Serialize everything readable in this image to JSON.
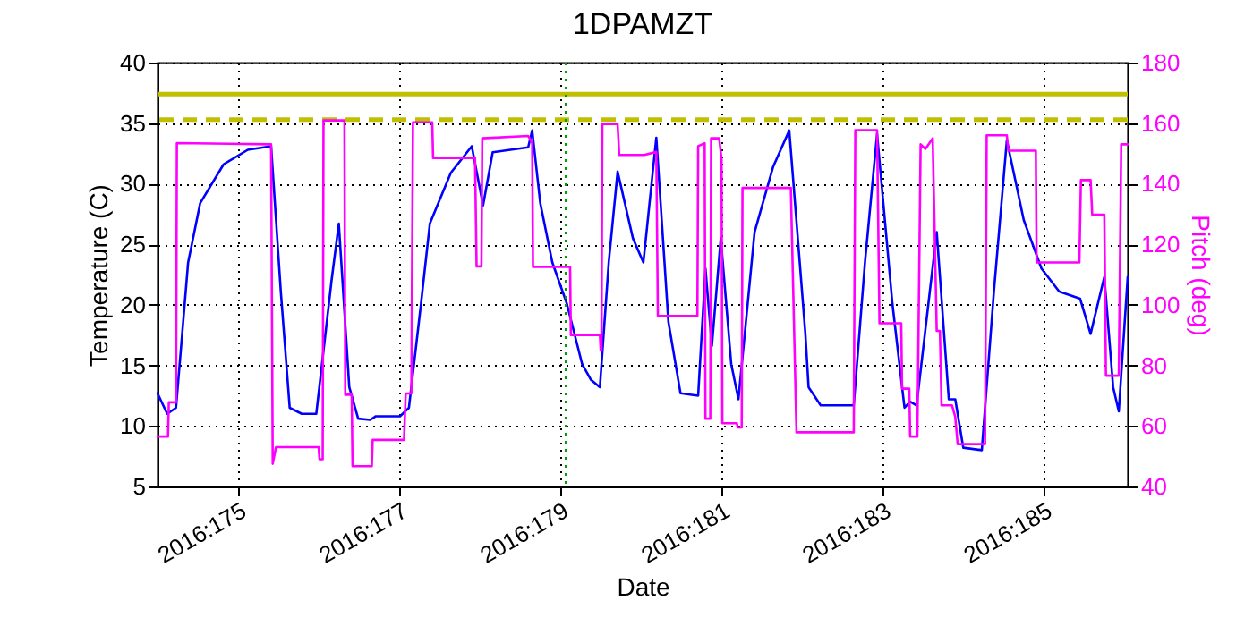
{
  "chart_data": {
    "type": "line",
    "title": "1DPAMZT",
    "xlabel": "Date",
    "ylabel": "Temperature (C)",
    "y2label": "Pitch (deg)",
    "xlim": [
      "2016-06-22T00:00",
      "2016-07-04T00:58"
    ],
    "xticks": [
      {
        "value": "2016-06-23",
        "label": "2016:175"
      },
      {
        "value": "2016-06-25",
        "label": "2016:177"
      },
      {
        "value": "2016-06-27",
        "label": "2016:179"
      },
      {
        "value": "2016-06-29",
        "label": "2016:181"
      },
      {
        "value": "2016-07-01",
        "label": "2016:183"
      },
      {
        "value": "2016-07-03",
        "label": "2016:185"
      }
    ],
    "ylim": [
      5,
      40
    ],
    "yticks": [
      5,
      10,
      15,
      20,
      25,
      30,
      35,
      40
    ],
    "y2lim": [
      40,
      180
    ],
    "y2ticks": [
      40,
      60,
      80,
      100,
      120,
      140,
      160,
      180
    ],
    "grid": true,
    "series": [
      {
        "color": "#0000ff",
        "axis": "y",
        "x": [
          "2016-06-22T00:00",
          "2016-06-22T02:53",
          "2016-06-22T05:31",
          "2016-06-22T09:07",
          "2016-06-22T12:43",
          "2016-06-22T19:41",
          "2016-06-23T02:53",
          "2016-06-23T09:50",
          "2016-06-23T12:43",
          "2016-06-23T15:22",
          "2016-06-23T18:58",
          "2016-06-23T23:17",
          "2016-06-24T03:50",
          "2016-06-24T06:00",
          "2016-06-24T09:07",
          "2016-06-24T11:46",
          "2016-06-24T15:22",
          "2016-06-24T17:02",
          "2016-06-25T00:14",
          "2016-06-25T02:53",
          "2016-06-25T06:29",
          "2016-06-25T09:07",
          "2016-06-25T15:22",
          "2016-06-25T21:36",
          "2016-06-26T00:58",
          "2016-06-26T03:50",
          "2016-06-26T14:24",
          "2016-06-26T15:36",
          "2016-06-26T18:00",
          "2016-06-26T21:36",
          "2016-06-27T01:55",
          "2016-06-27T06:29",
          "2016-06-27T09:07",
          "2016-06-27T11:46",
          "2016-06-27T14:24",
          "2016-06-27T17:02",
          "2016-06-27T21:36",
          "2016-06-28T00:43",
          "2016-06-28T04:34",
          "2016-06-28T08:10",
          "2016-06-28T11:46",
          "2016-06-28T17:02",
          "2016-06-28T19:12",
          "2016-06-28T21:07",
          "2016-06-28T23:46",
          "2016-06-29T02:53",
          "2016-06-29T05:02",
          "2016-06-29T09:50",
          "2016-06-29T15:22",
          "2016-06-29T20:10",
          "2016-06-30T00:58",
          "2016-06-30T01:55",
          "2016-06-30T05:31",
          "2016-06-30T15:22",
          "2016-06-30T18:43",
          "2016-06-30T22:19",
          "2016-07-01T02:53",
          "2016-07-01T06:29",
          "2016-07-01T08:10",
          "2016-07-01T10:05",
          "2016-07-01T16:05",
          "2016-07-01T19:41",
          "2016-07-01T21:36",
          "2016-07-02T00:00",
          "2016-07-02T05:31",
          "2016-07-02T09:07",
          "2016-07-02T12:58",
          "2016-07-02T18:00",
          "2016-07-02T23:17",
          "2016-07-03T04:34",
          "2016-07-03T10:48",
          "2016-07-03T13:55",
          "2016-07-03T18:00",
          "2016-07-03T20:38",
          "2016-07-03T22:19",
          "2016-07-04T00:58"
        ],
        "values": [
          12.7,
          11.0,
          11.5,
          23.5,
          28.4,
          31.6,
          32.8,
          33.1,
          21.1,
          11.5,
          11.0,
          11.0,
          22.0,
          26.7,
          13.2,
          10.6,
          10.5,
          10.8,
          10.8,
          11.5,
          20.1,
          26.7,
          30.9,
          33.1,
          28.2,
          32.6,
          33.0,
          34.4,
          28.4,
          23.5,
          20.1,
          15.1,
          13.8,
          13.2,
          23.5,
          31.0,
          25.5,
          23.5,
          33.8,
          18.6,
          12.7,
          12.5,
          23.0,
          16.6,
          25.5,
          15.1,
          12.2,
          26.0,
          31.4,
          34.4,
          17.6,
          13.2,
          11.7,
          11.7,
          23.5,
          34.1,
          20.1,
          11.5,
          12.0,
          11.7,
          26.0,
          12.2,
          12.2,
          8.2,
          8.0,
          21.1,
          33.6,
          27.0,
          23.0,
          21.1,
          20.5,
          17.6,
          22.3,
          13.2,
          11.2,
          22.3
        ]
      },
      {
        "color": "#ff00ff",
        "axis": "y2",
        "x": [
          "2016-06-22T00:00",
          "2016-06-22T03:07",
          "2016-06-22T03:22",
          "2016-06-22T05:31",
          "2016-06-22T05:46",
          "2016-06-23T09:50",
          "2016-06-23T10:19",
          "2016-06-23T11:17",
          "2016-06-24T00:00",
          "2016-06-24T00:14",
          "2016-06-24T01:12",
          "2016-06-24T01:26",
          "2016-06-24T07:41",
          "2016-06-24T07:55",
          "2016-06-24T09:50",
          "2016-06-24T10:05",
          "2016-06-24T15:50",
          "2016-06-24T16:05",
          "2016-06-25T01:26",
          "2016-06-25T01:55",
          "2016-06-25T03:36",
          "2016-06-25T04:05",
          "2016-06-25T09:50",
          "2016-06-25T10:05",
          "2016-06-25T22:34",
          "2016-06-25T23:02",
          "2016-06-26T00:29",
          "2016-06-26T00:43",
          "2016-06-26T14:24",
          "2016-06-26T15:36",
          "2016-06-26T15:50",
          "2016-06-27T02:53",
          "2016-06-27T03:07",
          "2016-06-27T11:46",
          "2016-06-27T12:00",
          "2016-06-27T12:14",
          "2016-06-27T12:29",
          "2016-06-27T17:02",
          "2016-06-27T17:31",
          "2016-06-28T00:58",
          "2016-06-28T04:34",
          "2016-06-28T05:02",
          "2016-06-28T16:48",
          "2016-06-28T17:02",
          "2016-06-28T18:58",
          "2016-06-28T19:12",
          "2016-06-28T20:38",
          "2016-06-28T20:53",
          "2016-06-28T23:17",
          "2016-06-29T00:00",
          "2016-06-29T00:14",
          "2016-06-29T04:34",
          "2016-06-29T04:48",
          "2016-06-29T06:00",
          "2016-06-29T06:14",
          "2016-06-29T20:38",
          "2016-06-29T22:19",
          "2016-06-30T15:22",
          "2016-06-30T15:50",
          "2016-06-30T22:19",
          "2016-06-30T23:02",
          "2016-07-01T05:31",
          "2016-07-01T05:46",
          "2016-07-01T07:55",
          "2016-07-01T08:10",
          "2016-07-01T10:19",
          "2016-07-01T11:17",
          "2016-07-01T12:43",
          "2016-07-01T14:53",
          "2016-07-01T16:05",
          "2016-07-01T17:02",
          "2016-07-01T17:31",
          "2016-07-01T20:38",
          "2016-07-01T21:36",
          "2016-07-01T22:19",
          "2016-07-02T06:29",
          "2016-07-02T06:58",
          "2016-07-02T12:58",
          "2016-07-02T13:26",
          "2016-07-02T21:36",
          "2016-07-02T21:50",
          "2016-07-03T10:34",
          "2016-07-03T11:02",
          "2016-07-03T13:55",
          "2016-07-03T14:24",
          "2016-07-03T18:00",
          "2016-07-03T18:29",
          "2016-07-03T22:19",
          "2016-07-03T23:02",
          "2016-07-04T00:58"
        ],
        "values": [
          56.5,
          56.5,
          67.8,
          67.8,
          153.4,
          153.0,
          47.5,
          53.0,
          53.0,
          49.0,
          49.0,
          160.9,
          160.9,
          70.3,
          70.3,
          46.7,
          46.7,
          55.4,
          55.4,
          70.7,
          70.7,
          160.3,
          160.3,
          148.5,
          148.5,
          112.7,
          112.7,
          155.0,
          155.8,
          153.4,
          112.5,
          112.5,
          90.0,
          90.0,
          84.9,
          84.9,
          159.7,
          159.7,
          149.5,
          149.5,
          150.5,
          96.3,
          96.3,
          152.4,
          153.4,
          62.4,
          62.4,
          155.0,
          155.0,
          148.0,
          60.9,
          60.9,
          59.5,
          59.5,
          138.6,
          138.6,
          57.9,
          57.9,
          157.7,
          157.7,
          93.9,
          93.9,
          72.3,
          72.3,
          56.5,
          56.5,
          153.0,
          151.5,
          155.0,
          91.4,
          91.4,
          66.8,
          66.8,
          63.0,
          54.0,
          54.0,
          156.0,
          156.0,
          150.9,
          150.9,
          114.0,
          114.0,
          141.2,
          141.2,
          129.8,
          129.8,
          76.6,
          76.6,
          153.0,
          153.0
        ]
      }
    ],
    "ref_lines": [
      {
        "axis": "y",
        "value": 37.4,
        "color": "#bfbf00",
        "line_style": "solid"
      },
      {
        "axis": "y",
        "value": 35.3,
        "color": "#bfbf00",
        "line_style": "dashed"
      },
      {
        "axis": "x",
        "value": "2016-06-27T01:41",
        "color": "#00a000",
        "line_style": "dotted"
      }
    ]
  }
}
